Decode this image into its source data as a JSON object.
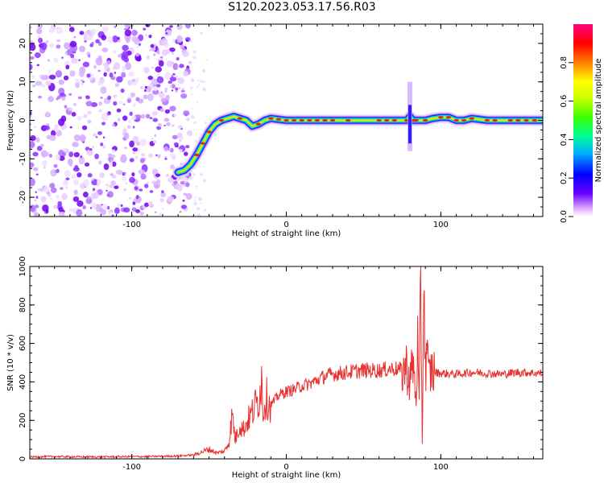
{
  "title": "S120.2023.053.17.56.R03",
  "chart_data": [
    {
      "type": "heatmap",
      "title": "",
      "xlabel": "Height of straight line (km)",
      "ylabel": "Frequency (Hz)",
      "xlim": [
        -166,
        166
      ],
      "ylim": [
        -25,
        25
      ],
      "xticks": [
        -100,
        0,
        100
      ],
      "yticks": [
        -20,
        -10,
        0,
        10,
        20
      ],
      "colorbar": {
        "label": "Normalized spectral amplitude",
        "range": [
          0,
          1
        ],
        "ticks": [
          0.0,
          0.2,
          0.4,
          0.6,
          0.8
        ],
        "colormap": [
          "#ffffff",
          "#e0b0ff",
          "#6a00ff",
          "#0000ff",
          "#00b0ff",
          "#00ff90",
          "#40ff00",
          "#d0ff00",
          "#ffff00",
          "#ff8000",
          "#ff0000",
          "#ff0080"
        ]
      },
      "noise_region": {
        "x_from": -166,
        "x_to": -62,
        "description_level": 0.35
      },
      "signal_ridge": {
        "x": [
          -70,
          -66,
          -62,
          -58,
          -54,
          -50,
          -46,
          -42,
          -38,
          -34,
          -30,
          -26,
          -22,
          -18,
          -14,
          -10,
          0,
          20,
          40,
          60,
          70,
          76,
          78,
          80,
          82,
          84,
          90,
          95,
          100,
          105,
          110,
          115,
          120,
          130,
          140,
          150,
          166
        ],
        "y": [
          -13.5,
          -13,
          -11.5,
          -9,
          -6,
          -3,
          -1,
          0,
          0.5,
          1,
          0.5,
          0,
          -1.5,
          -1,
          0,
          0.5,
          0,
          0,
          0,
          0,
          0,
          0,
          0,
          1,
          0,
          0,
          0,
          0.5,
          0.8,
          0.8,
          0,
          0,
          0.5,
          0,
          0,
          0,
          0
        ]
      }
    },
    {
      "type": "line",
      "title": "",
      "xlabel": "Height of straight line (km)",
      "ylabel": "SNR (10 * v/v)",
      "xlim": [
        -166,
        166
      ],
      "ylim": [
        0,
        1000
      ],
      "xticks": [
        -100,
        0,
        100
      ],
      "yticks": [
        0,
        200,
        400,
        600,
        800,
        1000
      ],
      "series": [
        {
          "color": "#e83030",
          "x": [
            -166,
            -150,
            -130,
            -110,
            -90,
            -70,
            -60,
            -55,
            -50,
            -45,
            -40,
            -37,
            -35,
            -33,
            -30,
            -28,
            -25,
            -22,
            -20,
            -18,
            -16,
            -15,
            -13,
            -10,
            -5,
            0,
            5,
            10,
            15,
            20,
            25,
            30,
            40,
            50,
            60,
            70,
            75,
            78,
            80,
            82,
            84,
            85,
            86,
            87,
            88,
            89,
            90,
            91,
            92,
            94,
            96,
            100,
            110,
            120,
            130,
            140,
            150,
            166
          ],
          "y": [
            10,
            12,
            10,
            11,
            12,
            15,
            20,
            35,
            50,
            30,
            40,
            90,
            230,
            100,
            180,
            150,
            200,
            240,
            280,
            300,
            420,
            250,
            320,
            280,
            330,
            350,
            360,
            380,
            390,
            410,
            430,
            440,
            450,
            460,
            460,
            470,
            460,
            480,
            400,
            500,
            300,
            600,
            250,
            950,
            80,
            1000,
            450,
            600,
            420,
            460,
            450,
            445,
            440,
            450,
            445,
            440,
            450,
            445
          ]
        }
      ]
    }
  ]
}
